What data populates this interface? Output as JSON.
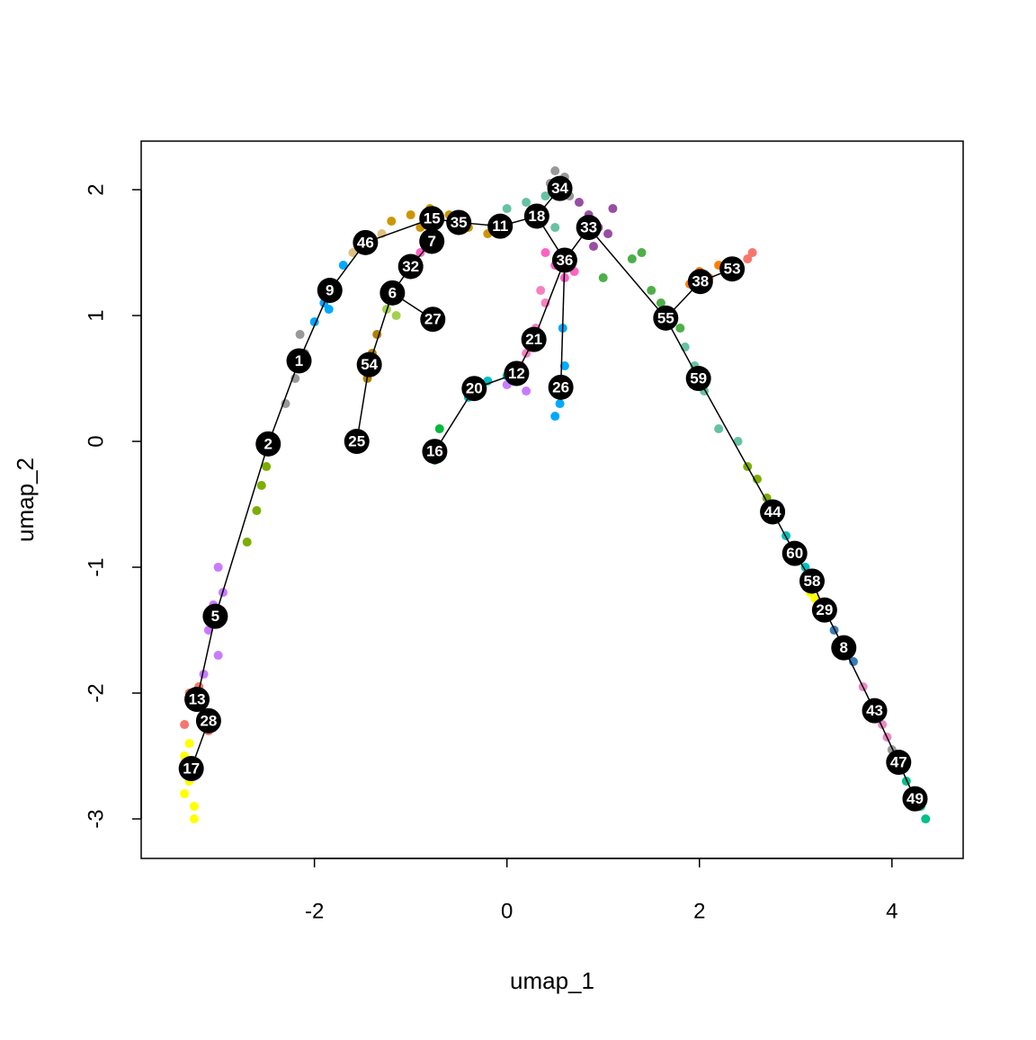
{
  "chart_data": {
    "type": "scatter",
    "x_label": "umap_1",
    "y_label": "umap_2",
    "xlim": [
      -3.8,
      4.74
    ],
    "ylim": [
      -3.314,
      2.386
    ],
    "xticks": [
      -2,
      0,
      2,
      4
    ],
    "yticks": [
      -3,
      -2,
      -1,
      0,
      1,
      2
    ],
    "cells": [
      {
        "color": "#FFFF00",
        "x": [
          -3.35,
          -3.3,
          -3.25,
          -3.2,
          -3.3,
          -3.25,
          -3.35,
          -3.28
        ],
        "y": [
          -2.5,
          -2.7,
          -2.9,
          -2.6,
          -2.4,
          -3.0,
          -2.8,
          -2.55
        ]
      },
      {
        "color": "#F8766D",
        "x": [
          -3.3,
          -3.25,
          -3.2,
          -3.15,
          -3.1,
          -3.35
        ],
        "y": [
          -2.0,
          -2.1,
          -1.95,
          -2.2,
          -2.3,
          -2.25
        ]
      },
      {
        "color": "#C77CFF",
        "x": [
          -3.0,
          -3.05,
          -3.1,
          -3.0,
          -2.95,
          -3.15
        ],
        "y": [
          -1.0,
          -1.3,
          -1.5,
          -1.7,
          -1.2,
          -1.85
        ]
      },
      {
        "color": "#7CAE00",
        "x": [
          -2.7,
          -2.6,
          -2.5,
          -2.55
        ],
        "y": [
          -0.8,
          -0.55,
          -0.2,
          -0.35
        ]
      },
      {
        "color": "#999999",
        "x": [
          -2.3,
          -2.2,
          -2.1,
          -2.15
        ],
        "y": [
          0.3,
          0.5,
          0.7,
          0.85
        ]
      },
      {
        "color": "#00A9FF",
        "x": [
          -2.0,
          -1.9,
          -1.8,
          -1.7,
          -1.85
        ],
        "y": [
          0.95,
          1.1,
          1.25,
          1.4,
          1.05
        ]
      },
      {
        "color": "#E0C080",
        "x": [
          -1.6,
          -1.5,
          -1.4,
          -1.3
        ],
        "y": [
          1.5,
          1.55,
          1.6,
          1.65
        ]
      },
      {
        "color": "#CD9600",
        "x": [
          -1.2,
          -1.0,
          -0.8,
          -0.6,
          -0.4,
          -0.2,
          -0.9
        ],
        "y": [
          1.75,
          1.8,
          1.85,
          1.8,
          1.7,
          1.65,
          1.7
        ]
      },
      {
        "color": "#FF61C3",
        "x": [
          -0.9,
          -1.0,
          -0.8,
          0.4,
          0.6,
          0.7,
          0.5
        ],
        "y": [
          1.5,
          1.45,
          1.6,
          1.5,
          1.3,
          1.35,
          1.4
        ]
      },
      {
        "color": "#A3D04F",
        "x": [
          -1.25,
          -1.2,
          -1.15
        ],
        "y": [
          1.05,
          1.2,
          1.0
        ]
      },
      {
        "color": "#B08000",
        "x": [
          -1.45,
          -1.4,
          -1.35
        ],
        "y": [
          0.5,
          0.7,
          0.85
        ]
      },
      {
        "color": "#66C2A5",
        "x": [
          0.0,
          0.2,
          0.3,
          0.5,
          0.4
        ],
        "y": [
          1.85,
          1.9,
          1.75,
          1.7,
          1.95
        ]
      },
      {
        "color": "#999999",
        "x": [
          0.45,
          0.5,
          0.6,
          0.65,
          0.55
        ],
        "y": [
          2.05,
          2.15,
          2.1,
          1.95,
          2.0
        ]
      },
      {
        "color": "#984EA3",
        "x": [
          0.75,
          0.85,
          0.95,
          1.05,
          0.9,
          1.1
        ],
        "y": [
          1.9,
          1.8,
          1.7,
          1.65,
          1.55,
          1.85
        ]
      },
      {
        "color": "#F781BF",
        "x": [
          0.2,
          0.3,
          0.4,
          0.35,
          0.15
        ],
        "y": [
          0.7,
          0.9,
          1.1,
          1.2,
          0.6
        ]
      },
      {
        "color": "#C77CFF",
        "x": [
          0.0,
          0.1,
          0.2
        ],
        "y": [
          0.45,
          0.55,
          0.4
        ]
      },
      {
        "color": "#00BFC4",
        "x": [
          -0.4,
          -0.3,
          -0.2,
          0.0
        ],
        "y": [
          0.35,
          0.45,
          0.48,
          0.52
        ]
      },
      {
        "color": "#00BA38",
        "x": [
          -0.8,
          -0.7,
          -0.75
        ],
        "y": [
          -0.05,
          0.1,
          -0.15
        ]
      },
      {
        "color": "#00A9FF",
        "x": [
          0.5,
          0.55,
          0.6,
          0.58,
          0.52
        ],
        "y": [
          0.2,
          0.3,
          0.6,
          0.9,
          0.45
        ]
      },
      {
        "color": "#4DAF4A",
        "x": [
          1.0,
          1.3,
          1.5,
          1.7,
          1.8,
          1.6,
          1.4
        ],
        "y": [
          1.3,
          1.45,
          1.2,
          1.0,
          0.9,
          1.1,
          1.5
        ]
      },
      {
        "color": "#FF7F00",
        "x": [
          1.9,
          2.0,
          2.1,
          2.2
        ],
        "y": [
          1.25,
          1.35,
          1.3,
          1.4
        ]
      },
      {
        "color": "#F8766D",
        "x": [
          2.4,
          2.5,
          2.55
        ],
        "y": [
          1.4,
          1.45,
          1.5
        ]
      },
      {
        "color": "#66C2A5",
        "x": [
          1.85,
          1.95,
          2.05,
          2.2,
          2.4
        ],
        "y": [
          0.75,
          0.6,
          0.4,
          0.1,
          0.0
        ]
      },
      {
        "color": "#7CAE00",
        "x": [
          2.5,
          2.6,
          2.7,
          2.8
        ],
        "y": [
          -0.2,
          -0.3,
          -0.45,
          -0.6
        ]
      },
      {
        "color": "#00BFC4",
        "x": [
          2.9,
          3.0,
          3.1
        ],
        "y": [
          -0.75,
          -0.85,
          -1.0
        ]
      },
      {
        "color": "#FFFF00",
        "x": [
          3.15,
          3.2
        ],
        "y": [
          -1.2,
          -1.25
        ]
      },
      {
        "color": "#377EB8",
        "x": [
          3.4,
          3.5,
          3.6,
          3.55
        ],
        "y": [
          -1.5,
          -1.6,
          -1.75,
          -1.7
        ]
      },
      {
        "color": "#E78AC3",
        "x": [
          3.7,
          3.8,
          3.9,
          3.95
        ],
        "y": [
          -1.95,
          -2.1,
          -2.25,
          -2.35
        ]
      },
      {
        "color": "#999999",
        "x": [
          4.0,
          4.1
        ],
        "y": [
          -2.45,
          -2.5
        ]
      },
      {
        "color": "#00C08B",
        "x": [
          4.15,
          4.25,
          4.3,
          4.35
        ],
        "y": [
          -2.7,
          -2.8,
          -2.9,
          -3.0
        ]
      }
    ],
    "nodes": [
      {
        "label": "1",
        "x": -2.16,
        "y": 0.64
      },
      {
        "label": "2",
        "x": -2.48,
        "y": -0.02
      },
      {
        "label": "5",
        "x": -3.03,
        "y": -1.39
      },
      {
        "label": "13",
        "x": -3.22,
        "y": -2.05
      },
      {
        "label": "28",
        "x": -3.1,
        "y": -2.22
      },
      {
        "label": "17",
        "x": -3.28,
        "y": -2.6
      },
      {
        "label": "9",
        "x": -1.84,
        "y": 1.2
      },
      {
        "label": "46",
        "x": -1.47,
        "y": 1.58
      },
      {
        "label": "15",
        "x": -0.78,
        "y": 1.77
      },
      {
        "label": "35",
        "x": -0.5,
        "y": 1.74
      },
      {
        "label": "11",
        "x": -0.07,
        "y": 1.71
      },
      {
        "label": "18",
        "x": 0.31,
        "y": 1.79
      },
      {
        "label": "34",
        "x": 0.55,
        "y": 2.01
      },
      {
        "label": "33",
        "x": 0.85,
        "y": 1.7
      },
      {
        "label": "36",
        "x": 0.6,
        "y": 1.44
      },
      {
        "label": "7",
        "x": -0.78,
        "y": 1.59
      },
      {
        "label": "32",
        "x": -1.0,
        "y": 1.39
      },
      {
        "label": "6",
        "x": -1.19,
        "y": 1.18
      },
      {
        "label": "27",
        "x": -0.77,
        "y": 0.97
      },
      {
        "label": "54",
        "x": -1.43,
        "y": 0.61
      },
      {
        "label": "25",
        "x": -1.56,
        "y": 0.0
      },
      {
        "label": "21",
        "x": 0.28,
        "y": 0.81
      },
      {
        "label": "12",
        "x": 0.1,
        "y": 0.54
      },
      {
        "label": "20",
        "x": -0.34,
        "y": 0.42
      },
      {
        "label": "16",
        "x": -0.75,
        "y": -0.08
      },
      {
        "label": "26",
        "x": 0.56,
        "y": 0.43
      },
      {
        "label": "55",
        "x": 1.65,
        "y": 0.98
      },
      {
        "label": "38",
        "x": 2.01,
        "y": 1.27
      },
      {
        "label": "53",
        "x": 2.34,
        "y": 1.37
      },
      {
        "label": "59",
        "x": 1.99,
        "y": 0.5
      },
      {
        "label": "44",
        "x": 2.76,
        "y": -0.56
      },
      {
        "label": "60",
        "x": 2.99,
        "y": -0.89
      },
      {
        "label": "58",
        "x": 3.17,
        "y": -1.11
      },
      {
        "label": "29",
        "x": 3.3,
        "y": -1.34
      },
      {
        "label": "8",
        "x": 3.5,
        "y": -1.64
      },
      {
        "label": "43",
        "x": 3.82,
        "y": -2.14
      },
      {
        "label": "47",
        "x": 4.07,
        "y": -2.55
      },
      {
        "label": "49",
        "x": 4.24,
        "y": -2.84
      }
    ],
    "edges": [
      [
        "17",
        "28"
      ],
      [
        "28",
        "13"
      ],
      [
        "13",
        "5"
      ],
      [
        "5",
        "2"
      ],
      [
        "2",
        "1"
      ],
      [
        "1",
        "9"
      ],
      [
        "9",
        "46"
      ],
      [
        "46",
        "15"
      ],
      [
        "15",
        "35"
      ],
      [
        "35",
        "11"
      ],
      [
        "11",
        "18"
      ],
      [
        "18",
        "34"
      ],
      [
        "18",
        "36"
      ],
      [
        "36",
        "33"
      ],
      [
        "33",
        "55"
      ],
      [
        "55",
        "38"
      ],
      [
        "38",
        "53"
      ],
      [
        "55",
        "59"
      ],
      [
        "59",
        "44"
      ],
      [
        "44",
        "60"
      ],
      [
        "60",
        "58"
      ],
      [
        "58",
        "29"
      ],
      [
        "29",
        "8"
      ],
      [
        "8",
        "43"
      ],
      [
        "43",
        "47"
      ],
      [
        "47",
        "49"
      ],
      [
        "15",
        "7"
      ],
      [
        "7",
        "32"
      ],
      [
        "32",
        "6"
      ],
      [
        "6",
        "27"
      ],
      [
        "6",
        "54"
      ],
      [
        "54",
        "25"
      ],
      [
        "36",
        "21"
      ],
      [
        "21",
        "12"
      ],
      [
        "12",
        "20"
      ],
      [
        "20",
        "16"
      ],
      [
        "36",
        "26"
      ]
    ]
  }
}
